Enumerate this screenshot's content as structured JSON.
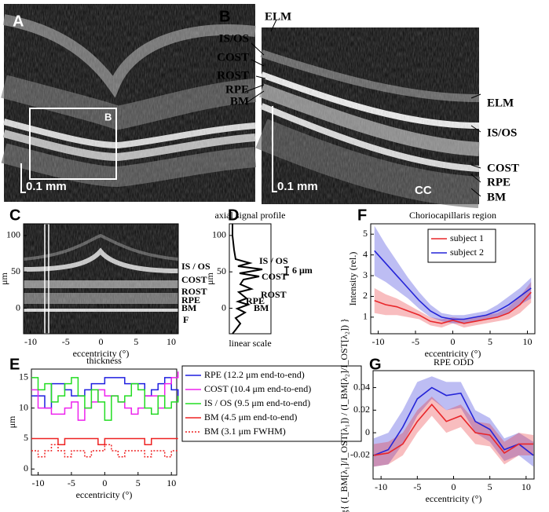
{
  "images": [
    {
      "panel": "A",
      "inset_label": "B",
      "scale_bar": "0.1 mm"
    },
    {
      "panel": "B",
      "left_labels": [
        "ELM",
        "IS/OS",
        "COST",
        "ROST",
        "RPE",
        "BM"
      ],
      "right_labels": [
        "ELM",
        "IS/OS",
        "COST",
        "RPE",
        "BM"
      ],
      "region_label": "CC",
      "scale_bar": "0.1 mm"
    }
  ],
  "chart_data": [
    {
      "panel": "C",
      "type": "image",
      "xlabel": "eccentricity (°)",
      "ylabel": "μm",
      "xlim": [
        -11,
        11
      ],
      "ylim": [
        -35,
        116
      ],
      "xticks": [
        -10,
        -5,
        0,
        5,
        10
      ],
      "yticks": [
        0,
        50,
        100
      ],
      "annotations": [
        {
          "text": "IS / OS",
          "color": "#22dd22"
        },
        {
          "text": "COST",
          "color": "#ee22ee"
        },
        {
          "text": "ROST",
          "color": "#000000"
        },
        {
          "text": "RPE",
          "color": "#2222dd"
        },
        {
          "text": "BM",
          "color": "#ee2222"
        },
        {
          "text": "F",
          "color": "#000000"
        }
      ]
    },
    {
      "panel": "D",
      "type": "profile",
      "title": "axial signal profile",
      "xlabel": "linear scale",
      "ylabel": "μm",
      "ylim": [
        -35,
        116
      ],
      "yticks": [
        0,
        50,
        100
      ],
      "annotations": [
        {
          "text": "IS / OS",
          "color": "#22dd22"
        },
        {
          "text": "COST",
          "color": "#ee22ee"
        },
        {
          "text": "ROST",
          "color": "#000000"
        },
        {
          "text": "RPE",
          "color": "#2222dd"
        },
        {
          "text": "BM",
          "color": "#ee2222"
        },
        {
          "text": "6 μm",
          "color": "#000000"
        }
      ]
    },
    {
      "panel": "F",
      "type": "line",
      "title": "Choriocapillaris region",
      "xlabel": "eccentricity (°)",
      "ylabel": "Intensity (rel.)",
      "legend": "upper right",
      "x": [
        -10.5,
        -9,
        -7.5,
        -6,
        -4.5,
        -3,
        -1.5,
        0,
        1.5,
        3,
        4.5,
        6,
        7.5,
        9,
        10.5
      ],
      "xlim": [
        -11,
        11
      ],
      "ylim": [
        0.2,
        5.5
      ],
      "xticks": [
        -10,
        -5,
        0,
        5,
        10
      ],
      "yticks": [
        1,
        2,
        3,
        4,
        5
      ],
      "series": [
        {
          "name": "subject 1",
          "color": "#e8262a",
          "values": [
            1.8,
            1.6,
            1.5,
            1.3,
            1.1,
            0.8,
            0.7,
            0.85,
            0.7,
            0.8,
            0.9,
            1.0,
            1.2,
            1.6,
            2.2
          ],
          "upper": [
            2.4,
            2.1,
            1.9,
            1.6,
            1.3,
            1.0,
            0.9,
            1.0,
            0.9,
            1.0,
            1.1,
            1.2,
            1.5,
            2.0,
            2.7
          ],
          "lower": [
            1.2,
            1.1,
            1.1,
            1.0,
            0.9,
            0.6,
            0.5,
            0.7,
            0.5,
            0.6,
            0.7,
            0.8,
            0.9,
            1.2,
            1.7
          ]
        },
        {
          "name": "subject 2",
          "color": "#2424d8",
          "values": [
            4.2,
            3.6,
            3.0,
            2.4,
            1.8,
            1.3,
            1.0,
            0.9,
            0.9,
            1.0,
            1.1,
            1.3,
            1.6,
            2.0,
            2.4
          ],
          "upper": [
            5.4,
            4.5,
            3.7,
            2.9,
            2.2,
            1.6,
            1.2,
            1.1,
            1.1,
            1.2,
            1.3,
            1.6,
            2.0,
            2.4,
            2.9
          ],
          "lower": [
            3.0,
            2.7,
            2.3,
            1.9,
            1.4,
            1.0,
            0.8,
            0.7,
            0.7,
            0.8,
            0.9,
            1.0,
            1.2,
            1.6,
            1.9
          ]
        }
      ]
    },
    {
      "panel": "E",
      "type": "step",
      "title": "thickness",
      "xlabel": "eccentricity (°)",
      "ylabel": "μm",
      "x": [
        -11,
        -10,
        -9,
        -8,
        -7,
        -6,
        -5,
        -4,
        -3,
        -2,
        -1,
        0,
        1,
        2,
        3,
        4,
        5,
        6,
        7,
        8,
        9,
        10,
        11
      ],
      "xlim": [
        -11,
        10.8
      ],
      "ylim": [
        -1,
        16.4
      ],
      "xticks": [
        -10,
        -5,
        0,
        5,
        10
      ],
      "yticks": [
        0,
        5,
        10,
        15
      ],
      "series": [
        {
          "name": "RPE (12.2 μm end-to-end)",
          "color": "#1f1fe0",
          "style": "solid",
          "values": [
            12,
            12,
            10,
            14,
            14,
            13,
            12,
            12,
            13,
            14,
            14,
            15,
            15,
            15,
            14,
            14,
            14,
            12,
            13,
            14,
            15,
            13,
            11
          ]
        },
        {
          "name": "COST (10.4 μm end-to-end)",
          "color": "#ee22ee",
          "style": "solid",
          "values": [
            13,
            10,
            10,
            9,
            9,
            10,
            11,
            8,
            10,
            11,
            13,
            12,
            12,
            11,
            10,
            9,
            10,
            12,
            12,
            10,
            14,
            15,
            16
          ]
        },
        {
          "name": "IS / OS (9.5 μm end-to-end)",
          "color": "#22dd22",
          "style": "solid",
          "values": [
            15,
            13,
            14,
            11,
            12,
            14,
            15,
            12,
            10,
            13,
            11,
            8,
            12,
            11,
            12,
            14,
            13,
            10,
            9,
            12,
            10,
            11,
            12
          ]
        },
        {
          "name": "BM (4.5 μm end-to-end)",
          "color": "#ee2222",
          "style": "solid",
          "values": [
            5,
            5,
            5,
            5,
            4,
            5,
            5,
            5,
            5,
            5,
            4,
            5,
            5,
            5,
            5,
            5,
            5,
            4,
            5,
            5,
            5,
            5,
            5
          ]
        },
        {
          "name": "BM (3.1 μm FWHM)",
          "color": "#ee2222",
          "style": "dotted",
          "values": [
            3,
            2,
            3,
            4,
            3,
            2,
            3,
            3,
            2,
            3,
            3,
            4,
            3,
            2,
            3,
            3,
            3,
            2,
            3,
            3,
            2,
            3,
            3
          ]
        }
      ]
    },
    {
      "panel": "G",
      "type": "line",
      "title": "RPE ODD",
      "xlabel": "eccentricity (°)",
      "ylabel": "½ log{ (I_BM[λ₁]/I_OST[λ₁]) / (I_BM[λ₂]/I_OST[λ₂]) }",
      "x": [
        -11,
        -9,
        -7,
        -5,
        -3,
        -1,
        1,
        3,
        5,
        7,
        9,
        11
      ],
      "xlim": [
        -11.1,
        11.1
      ],
      "ylim": [
        -0.041,
        0.055
      ],
      "xticks": [
        -10,
        -5,
        0,
        5,
        10
      ],
      "yticks": [
        -0.02,
        0,
        0.02,
        0.04
      ],
      "series": [
        {
          "color": "#2424d8",
          "values": [
            -0.02,
            -0.015,
            0.005,
            0.03,
            0.04,
            0.033,
            0.035,
            0.01,
            0.003,
            -0.015,
            -0.01,
            -0.02
          ],
          "upper": [
            -0.005,
            0.0,
            0.02,
            0.045,
            0.05,
            0.045,
            0.045,
            0.02,
            0.013,
            -0.005,
            0.0,
            -0.008
          ],
          "lower": [
            -0.03,
            -0.028,
            -0.01,
            0.015,
            0.03,
            0.02,
            0.022,
            0.0,
            -0.008,
            -0.025,
            -0.02,
            -0.03
          ]
        },
        {
          "color": "#e8262a",
          "values": [
            -0.02,
            -0.018,
            -0.01,
            0.01,
            0.025,
            0.01,
            0.015,
            0.0,
            -0.002,
            -0.018,
            -0.01,
            -0.01
          ],
          "upper": [
            -0.01,
            -0.008,
            0.0,
            0.02,
            0.032,
            0.02,
            0.025,
            0.01,
            0.008,
            -0.008,
            0.0,
            -0.002
          ],
          "lower": [
            -0.03,
            -0.028,
            -0.02,
            0.0,
            0.015,
            0.0,
            0.005,
            -0.01,
            -0.012,
            -0.028,
            -0.02,
            -0.02
          ]
        }
      ]
    }
  ]
}
